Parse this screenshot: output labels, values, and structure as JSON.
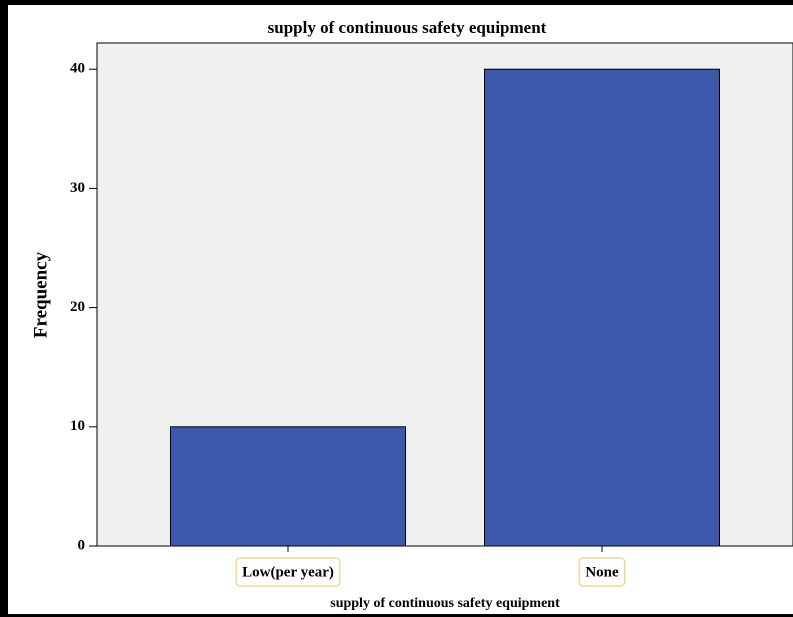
{
  "chart_data": {
    "type": "bar",
    "title": "supply of continuous safety equipment",
    "x_label": "supply of continuous safety equipment",
    "y_label": "Frequency",
    "categories": [
      "Low(per year)",
      "None"
    ],
    "values": [
      10,
      40
    ],
    "color": "#3d59ab",
    "ylim": [
      0,
      42.2
    ],
    "yticks": [
      0,
      10,
      20,
      30,
      40
    ],
    "grid": false
  }
}
